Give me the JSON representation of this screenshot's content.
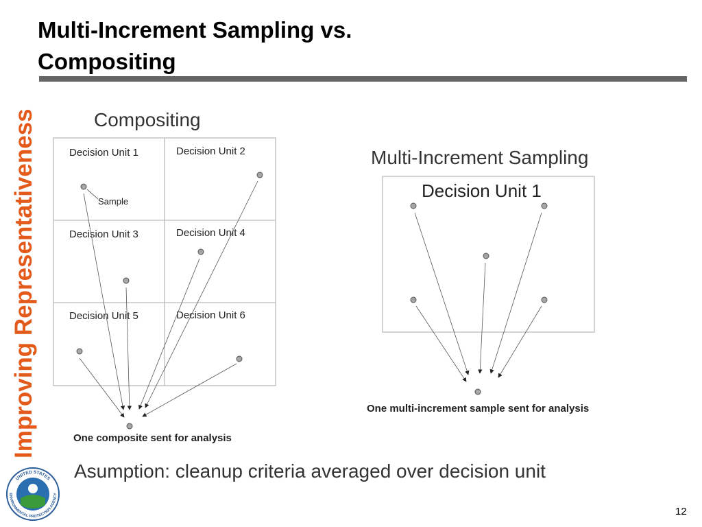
{
  "header": {
    "title_line1": "Multi-Increment Sampling vs.",
    "title_line2": "Compositing"
  },
  "sidebar": {
    "text": "Improving Representativeness"
  },
  "logo": {
    "top": "UNITED STATES",
    "bottom": "ENVIRONMENTAL PROTECTION AGENCY"
  },
  "compositing": {
    "title": "Compositing",
    "units": [
      "Decision Unit 1",
      "Decision Unit 2",
      "Decision Unit 3",
      "Decision Unit 4",
      "Decision Unit 5",
      "Decision Unit 6"
    ],
    "sample_label": "Sample",
    "caption": "One composite sent for analysis"
  },
  "mis": {
    "title": "Multi-Increment Sampling",
    "unit": "Decision Unit 1",
    "caption": "One multi-increment sample sent for analysis"
  },
  "assumption": "Asumption: cleanup criteria averaged over decision unit",
  "page_number": "12"
}
